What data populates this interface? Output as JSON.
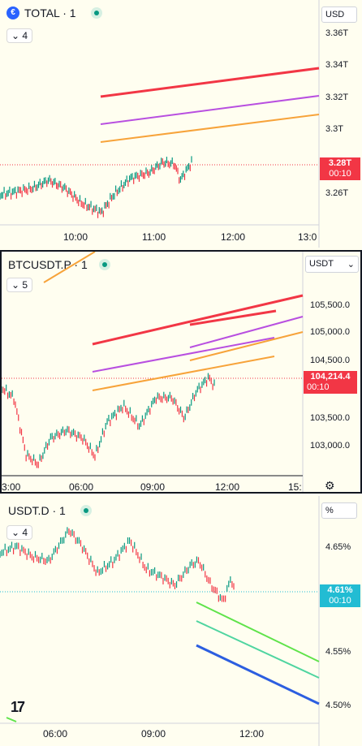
{
  "panels": [
    {
      "symbol": "TOTAL · 1",
      "interval_count": "4",
      "currency": "USD",
      "price_ticks": [
        "3.36T",
        "3.34T",
        "3.32T",
        "3.3T",
        "3.26T"
      ],
      "current_price": "3.28T",
      "countdown": "00:10",
      "time_ticks": [
        "10:00",
        "11:00",
        "12:00",
        "13:0"
      ]
    },
    {
      "symbol": "BTCUSDT.P · 1",
      "interval_count": "5",
      "currency": "USDT",
      "price_ticks": [
        "105,500.0",
        "105,000.0",
        "104,500.0",
        "103,500.0",
        "103,000.0"
      ],
      "current_price": "104,214.4",
      "countdown": "00:10",
      "time_ticks": [
        "3:00",
        "06:00",
        "09:00",
        "12:00",
        "15:"
      ]
    },
    {
      "symbol": "USDT.D · 1",
      "interval_count": "4",
      "currency": "%",
      "price_ticks": [
        "4.65%",
        "4.55%",
        "4.50%"
      ],
      "current_price": "4.61%",
      "countdown": "00:10",
      "time_ticks": [
        "06:00",
        "09:00",
        "12:00"
      ]
    }
  ],
  "colors": {
    "red": "#f23645",
    "purple": "#b84fe0",
    "orange": "#f7a33a",
    "green": "#5fe34a",
    "teal": "#4fd5a0",
    "blue": "#2c5ee0",
    "up": "#089981",
    "down": "#f23645",
    "price_tag_red": "#f23645",
    "price_tag_teal": "#22bcd3"
  }
}
